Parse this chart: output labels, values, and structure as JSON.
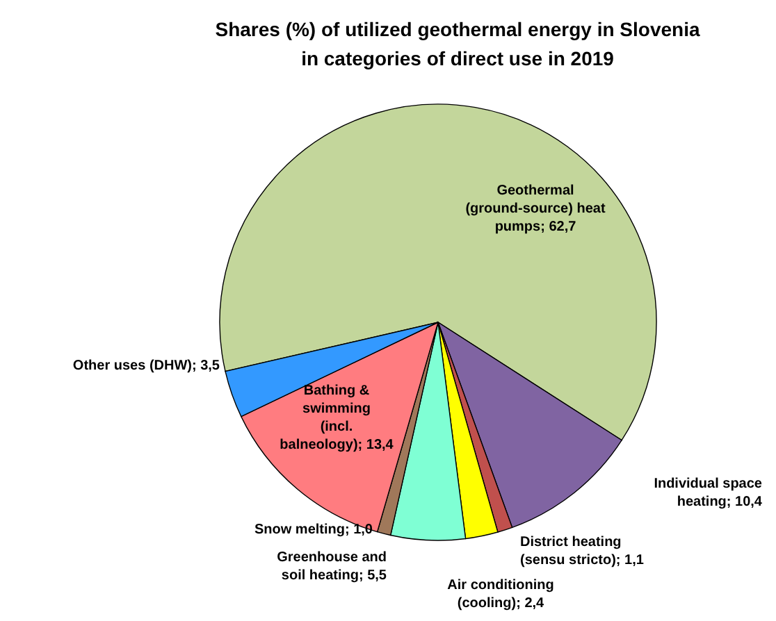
{
  "chart_data": {
    "type": "pie",
    "title": "Shares (%) of utilized geothermal energy in Slovenia in categories of direct use in 2019",
    "categories": [
      "Geothermal (ground-source) heat pumps",
      "Individual space heating",
      "District heating (sensu stricto)",
      "Air conditioning (cooling)",
      "Greenhouse and soil heating",
      "Snow melting",
      "Bathing & swimming (incl. balneology)",
      "Other uses (DHW)"
    ],
    "values": [
      62.7,
      10.4,
      1.1,
      2.4,
      5.5,
      1.0,
      13.4,
      3.5
    ],
    "value_labels": [
      "62,7",
      "10,4",
      "1,1",
      "2,4",
      "5,5",
      "1,0",
      "13,4",
      "3,5"
    ],
    "colors": [
      "#c3d69b",
      "#8064a2",
      "#c0504d",
      "#ffff00",
      "#7fffd4",
      "#a0785a",
      "#ff7c80",
      "#3399ff"
    ]
  }
}
